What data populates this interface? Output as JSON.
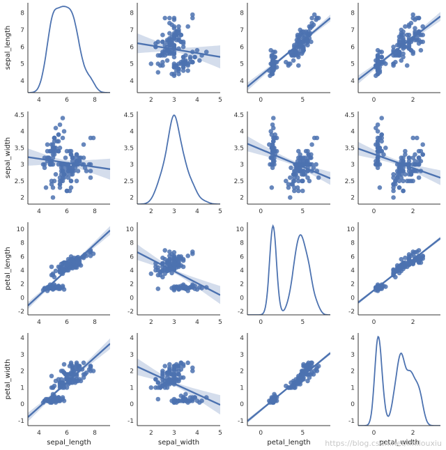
{
  "chart_data": {
    "type": "scatter",
    "kind": "pairplot-regression-kde",
    "variables": [
      "sepal_length",
      "sepal_width",
      "petal_length",
      "petal_width"
    ],
    "color": "#4c72b0",
    "ci_band_color": "#c5d2e6",
    "xlabels": [
      "sepal_length",
      "sepal_width",
      "petal_length",
      "petal_width"
    ],
    "ylabels": [
      "sepal_length",
      "sepal_width",
      "petal_length",
      "petal_width"
    ],
    "axes": [
      {
        "min": 3.2,
        "max": 9.1,
        "ticks": [
          4,
          6,
          8
        ]
      },
      {
        "min": 1.4,
        "max": 5.0,
        "ticks": [
          2,
          3,
          4,
          5
        ]
      },
      {
        "min": -1.6,
        "max": 8.3,
        "ticks": [
          0,
          5
        ]
      },
      {
        "min": -0.8,
        "max": 3.4,
        "ticks": [
          0,
          2
        ]
      }
    ],
    "diag_yaxes": [
      {
        "min": 3.3,
        "max": 8.6,
        "ticks": [
          4,
          5,
          6,
          7,
          8
        ]
      },
      {
        "min": 1.8,
        "max": 4.6,
        "ticks": [
          2.0,
          2.5,
          3.0,
          3.5,
          4.0,
          4.5
        ]
      },
      {
        "min": -2.5,
        "max": 11.0,
        "ticks": [
          -2,
          0,
          2,
          4,
          6,
          8,
          10
        ]
      },
      {
        "min": -1.3,
        "max": 4.3,
        "ticks": [
          -1,
          0,
          1,
          2,
          3,
          4
        ]
      }
    ],
    "row_yaxes": [
      {
        "min": 3.3,
        "max": 8.6,
        "ticks": [
          4,
          5,
          6,
          7,
          8
        ]
      },
      {
        "min": 1.8,
        "max": 4.6,
        "ticks": [
          2.0,
          2.5,
          3.0,
          3.5,
          4.0,
          4.5
        ]
      },
      {
        "min": -2.5,
        "max": 11.0,
        "ticks": [
          -2,
          0,
          2,
          4,
          6,
          8,
          10
        ]
      },
      {
        "min": -1.3,
        "max": 4.3,
        "ticks": [
          -1,
          0,
          1,
          2,
          3,
          4
        ]
      }
    ],
    "points": [
      [
        5.1,
        3.5,
        1.4,
        0.2
      ],
      [
        4.9,
        3.0,
        1.4,
        0.2
      ],
      [
        4.7,
        3.2,
        1.3,
        0.2
      ],
      [
        4.6,
        3.1,
        1.5,
        0.2
      ],
      [
        5.0,
        3.6,
        1.4,
        0.2
      ],
      [
        5.4,
        3.9,
        1.7,
        0.4
      ],
      [
        4.6,
        3.4,
        1.4,
        0.3
      ],
      [
        5.0,
        3.4,
        1.5,
        0.2
      ],
      [
        4.4,
        2.9,
        1.4,
        0.2
      ],
      [
        4.9,
        3.1,
        1.5,
        0.1
      ],
      [
        5.4,
        3.7,
        1.5,
        0.2
      ],
      [
        4.8,
        3.4,
        1.6,
        0.2
      ],
      [
        4.8,
        3.0,
        1.4,
        0.1
      ],
      [
        4.3,
        3.0,
        1.1,
        0.1
      ],
      [
        5.8,
        4.0,
        1.2,
        0.2
      ],
      [
        5.7,
        4.4,
        1.5,
        0.4
      ],
      [
        5.4,
        3.9,
        1.3,
        0.4
      ],
      [
        5.1,
        3.5,
        1.4,
        0.3
      ],
      [
        5.7,
        3.8,
        1.7,
        0.3
      ],
      [
        5.1,
        3.8,
        1.5,
        0.3
      ],
      [
        5.4,
        3.4,
        1.7,
        0.2
      ],
      [
        5.1,
        3.7,
        1.5,
        0.4
      ],
      [
        4.6,
        3.6,
        1.0,
        0.2
      ],
      [
        5.1,
        3.3,
        1.7,
        0.5
      ],
      [
        4.8,
        3.4,
        1.9,
        0.2
      ],
      [
        5.0,
        3.0,
        1.6,
        0.2
      ],
      [
        5.0,
        3.4,
        1.6,
        0.4
      ],
      [
        5.2,
        3.5,
        1.5,
        0.2
      ],
      [
        5.2,
        3.4,
        1.4,
        0.2
      ],
      [
        4.7,
        3.2,
        1.6,
        0.2
      ],
      [
        4.8,
        3.1,
        1.6,
        0.2
      ],
      [
        5.4,
        3.4,
        1.5,
        0.4
      ],
      [
        5.2,
        4.1,
        1.5,
        0.1
      ],
      [
        5.5,
        4.2,
        1.4,
        0.2
      ],
      [
        4.9,
        3.1,
        1.5,
        0.2
      ],
      [
        5.0,
        3.2,
        1.2,
        0.2
      ],
      [
        5.5,
        3.5,
        1.3,
        0.2
      ],
      [
        4.9,
        3.6,
        1.4,
        0.1
      ],
      [
        4.4,
        3.0,
        1.3,
        0.2
      ],
      [
        5.1,
        3.4,
        1.5,
        0.2
      ],
      [
        5.0,
        3.5,
        1.3,
        0.3
      ],
      [
        4.5,
        2.3,
        1.3,
        0.3
      ],
      [
        4.4,
        3.2,
        1.3,
        0.2
      ],
      [
        5.0,
        3.5,
        1.6,
        0.6
      ],
      [
        5.1,
        3.8,
        1.9,
        0.4
      ],
      [
        4.8,
        3.0,
        1.4,
        0.3
      ],
      [
        5.1,
        3.8,
        1.6,
        0.2
      ],
      [
        4.6,
        3.2,
        1.4,
        0.2
      ],
      [
        5.3,
        3.7,
        1.5,
        0.2
      ],
      [
        5.0,
        3.3,
        1.4,
        0.2
      ],
      [
        7.0,
        3.2,
        4.7,
        1.4
      ],
      [
        6.4,
        3.2,
        4.5,
        1.5
      ],
      [
        6.9,
        3.1,
        4.9,
        1.5
      ],
      [
        5.5,
        2.3,
        4.0,
        1.3
      ],
      [
        6.5,
        2.8,
        4.6,
        1.5
      ],
      [
        5.7,
        2.8,
        4.5,
        1.3
      ],
      [
        6.3,
        3.3,
        4.7,
        1.6
      ],
      [
        4.9,
        2.4,
        3.3,
        1.0
      ],
      [
        6.6,
        2.9,
        4.6,
        1.3
      ],
      [
        5.2,
        2.7,
        3.9,
        1.4
      ],
      [
        5.0,
        2.0,
        3.5,
        1.0
      ],
      [
        5.9,
        3.0,
        4.2,
        1.5
      ],
      [
        6.0,
        2.2,
        4.0,
        1.0
      ],
      [
        6.1,
        2.9,
        4.7,
        1.4
      ],
      [
        5.6,
        2.9,
        3.6,
        1.3
      ],
      [
        6.7,
        3.1,
        4.4,
        1.4
      ],
      [
        5.6,
        3.0,
        4.5,
        1.5
      ],
      [
        5.8,
        2.7,
        4.1,
        1.0
      ],
      [
        6.2,
        2.2,
        4.5,
        1.5
      ],
      [
        5.6,
        2.5,
        3.9,
        1.1
      ],
      [
        5.9,
        3.2,
        4.8,
        1.8
      ],
      [
        6.1,
        2.8,
        4.0,
        1.3
      ],
      [
        6.3,
        2.5,
        4.9,
        1.5
      ],
      [
        6.1,
        2.8,
        4.7,
        1.2
      ],
      [
        6.4,
        2.9,
        4.3,
        1.3
      ],
      [
        6.6,
        3.0,
        4.4,
        1.4
      ],
      [
        6.8,
        2.8,
        4.8,
        1.4
      ],
      [
        6.7,
        3.0,
        5.0,
        1.7
      ],
      [
        6.0,
        2.9,
        4.5,
        1.5
      ],
      [
        5.7,
        2.6,
        3.5,
        1.0
      ],
      [
        5.5,
        2.4,
        3.8,
        1.1
      ],
      [
        5.5,
        2.4,
        3.7,
        1.0
      ],
      [
        5.8,
        2.7,
        3.9,
        1.2
      ],
      [
        6.0,
        2.7,
        5.1,
        1.6
      ],
      [
        5.4,
        3.0,
        4.5,
        1.5
      ],
      [
        6.0,
        3.4,
        4.5,
        1.6
      ],
      [
        6.7,
        3.1,
        4.7,
        1.5
      ],
      [
        6.3,
        2.3,
        4.4,
        1.3
      ],
      [
        5.6,
        3.0,
        4.1,
        1.3
      ],
      [
        5.5,
        2.5,
        4.0,
        1.3
      ],
      [
        5.5,
        2.6,
        4.4,
        1.2
      ],
      [
        6.1,
        3.0,
        4.6,
        1.4
      ],
      [
        5.8,
        2.6,
        4.0,
        1.2
      ],
      [
        5.0,
        2.3,
        3.3,
        1.0
      ],
      [
        5.6,
        2.7,
        4.2,
        1.3
      ],
      [
        5.7,
        3.0,
        4.2,
        1.2
      ],
      [
        5.7,
        2.9,
        4.2,
        1.3
      ],
      [
        6.2,
        2.9,
        4.3,
        1.3
      ],
      [
        5.1,
        2.5,
        3.0,
        1.1
      ],
      [
        5.7,
        2.8,
        4.1,
        1.3
      ],
      [
        6.3,
        3.3,
        6.0,
        2.5
      ],
      [
        5.8,
        2.7,
        5.1,
        1.9
      ],
      [
        7.1,
        3.0,
        5.9,
        2.1
      ],
      [
        6.3,
        2.9,
        5.6,
        1.8
      ],
      [
        6.5,
        3.0,
        5.8,
        2.2
      ],
      [
        7.6,
        3.0,
        6.6,
        2.1
      ],
      [
        4.9,
        2.5,
        4.5,
        1.7
      ],
      [
        7.3,
        2.9,
        6.3,
        1.8
      ],
      [
        6.7,
        2.5,
        5.8,
        1.8
      ],
      [
        7.2,
        3.6,
        6.1,
        2.5
      ],
      [
        6.5,
        3.2,
        5.1,
        2.0
      ],
      [
        6.4,
        2.7,
        5.3,
        1.9
      ],
      [
        6.8,
        3.0,
        5.5,
        2.1
      ],
      [
        5.7,
        2.5,
        5.0,
        2.0
      ],
      [
        5.8,
        2.8,
        5.1,
        2.4
      ],
      [
        6.4,
        3.2,
        5.3,
        2.3
      ],
      [
        6.5,
        3.0,
        5.5,
        1.8
      ],
      [
        7.7,
        3.8,
        6.7,
        2.2
      ],
      [
        7.7,
        2.6,
        6.9,
        2.3
      ],
      [
        6.0,
        2.2,
        5.0,
        1.5
      ],
      [
        6.9,
        3.2,
        5.7,
        2.3
      ],
      [
        5.6,
        2.8,
        4.9,
        2.0
      ],
      [
        7.7,
        2.8,
        6.7,
        2.0
      ],
      [
        6.3,
        2.7,
        4.9,
        1.8
      ],
      [
        6.7,
        3.3,
        5.7,
        2.1
      ],
      [
        7.2,
        3.2,
        6.0,
        1.8
      ],
      [
        6.2,
        2.8,
        4.8,
        1.8
      ],
      [
        6.1,
        3.0,
        4.9,
        1.8
      ],
      [
        6.4,
        2.8,
        5.6,
        2.1
      ],
      [
        7.2,
        3.0,
        5.8,
        1.6
      ],
      [
        7.4,
        2.8,
        6.1,
        1.9
      ],
      [
        7.9,
        3.8,
        6.4,
        2.0
      ],
      [
        6.4,
        2.8,
        5.6,
        2.2
      ],
      [
        6.3,
        2.8,
        5.1,
        1.5
      ],
      [
        6.1,
        2.6,
        5.6,
        1.4
      ],
      [
        7.7,
        3.0,
        6.1,
        2.3
      ],
      [
        6.3,
        3.4,
        5.6,
        2.4
      ],
      [
        6.4,
        3.1,
        5.5,
        1.8
      ],
      [
        6.0,
        3.0,
        4.8,
        1.8
      ],
      [
        6.9,
        3.1,
        5.4,
        2.1
      ],
      [
        6.7,
        3.1,
        5.6,
        2.4
      ],
      [
        6.9,
        3.1,
        5.1,
        2.3
      ],
      [
        5.8,
        2.7,
        5.1,
        1.9
      ],
      [
        6.8,
        3.2,
        5.9,
        2.3
      ],
      [
        6.7,
        3.3,
        5.7,
        2.5
      ],
      [
        6.7,
        3.0,
        5.2,
        2.3
      ],
      [
        6.3,
        2.5,
        5.0,
        1.9
      ],
      [
        6.5,
        3.0,
        5.2,
        2.0
      ],
      [
        6.2,
        3.4,
        5.4,
        2.3
      ],
      [
        5.9,
        3.0,
        5.1,
        1.8
      ]
    ]
  },
  "watermark": "https://blog.csdn.net/lmllouxiu"
}
